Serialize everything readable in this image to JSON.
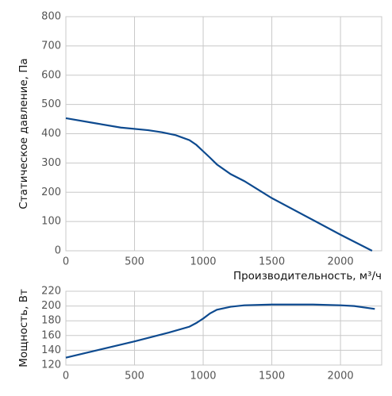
{
  "chart_data": [
    {
      "type": "line",
      "y_label": "Статическое давление, Па",
      "x_label": "Производительность, м³/ч",
      "x": [
        0,
        200,
        400,
        600,
        700,
        800,
        900,
        950,
        1000,
        1050,
        1100,
        1200,
        1300,
        1500,
        1800,
        2000,
        2230
      ],
      "series": [
        {
          "color": "#0d4a8f",
          "values": [
            453,
            437,
            421,
            412,
            405,
            395,
            378,
            362,
            340,
            318,
            295,
            262,
            238,
            180,
            105,
            55,
            0
          ]
        }
      ],
      "xlim": [
        0,
        2300
      ],
      "xticks": [
        0,
        500,
        1000,
        1500,
        2000
      ],
      "ylim": [
        0,
        800
      ],
      "yticks": [
        0,
        100,
        200,
        300,
        400,
        500,
        600,
        700,
        800
      ],
      "grid": true
    },
    {
      "type": "line",
      "y_label": "Мощность, Вт",
      "x": [
        0,
        250,
        500,
        750,
        900,
        950,
        1000,
        1050,
        1100,
        1200,
        1300,
        1500,
        1800,
        2000,
        2100,
        2250
      ],
      "series": [
        {
          "color": "#0d4a8f",
          "values": [
            130,
            141,
            152,
            164,
            172,
            177,
            183,
            190,
            195,
            199,
            201,
            202,
            202,
            201,
            200,
            196
          ]
        }
      ],
      "xlim": [
        0,
        2300
      ],
      "xticks": [
        0,
        500,
        1000,
        1500,
        2000
      ],
      "ylim": [
        120,
        220
      ],
      "yticks": [
        120,
        140,
        160,
        180,
        200,
        220
      ],
      "grid": true
    }
  ]
}
